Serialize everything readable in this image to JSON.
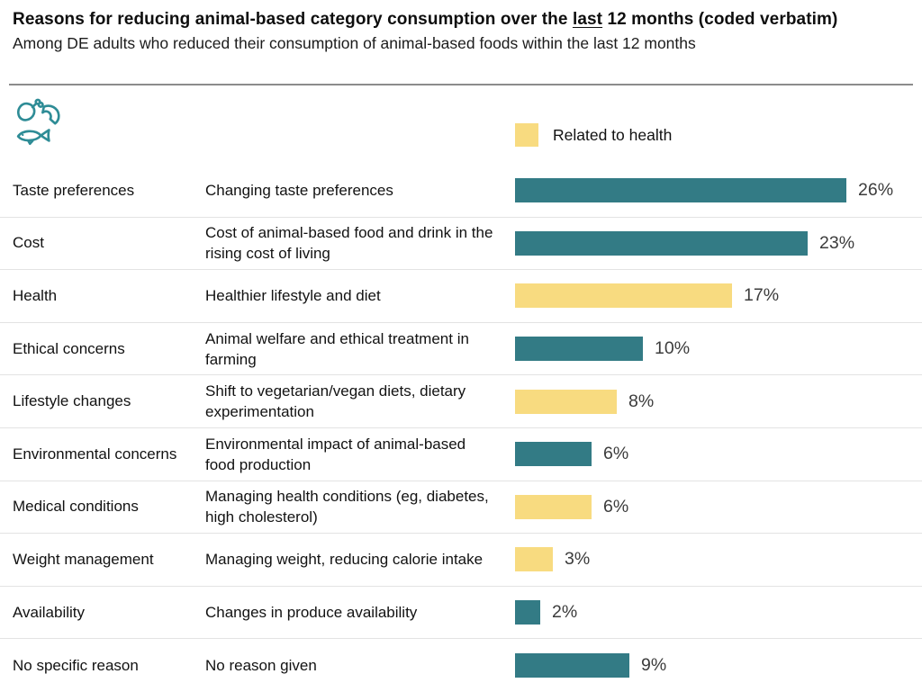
{
  "header": {
    "title_prefix": "Reasons for reducing animal-based category consumption over the ",
    "title_underlined": "last",
    "title_suffix": " 12 months (coded verbatim)",
    "subtitle": "Among DE adults who reduced their consumption of animal-based foods within the last 12 months"
  },
  "icon": {
    "name": "meat-and-fish-icon",
    "color": "#2E8C96"
  },
  "legend": {
    "label": "Related to health",
    "swatch_color": "#F8DB80"
  },
  "colors": {
    "teal": "#337B85",
    "yellow": "#F8DB80",
    "separator": "#E3E3E3",
    "divider": "#8C8C8C"
  },
  "chart_data": {
    "type": "bar",
    "orientation": "horizontal",
    "unit": "percent",
    "xlim": [
      0,
      31
    ],
    "grid": false,
    "legend_position": "top-right-of-bar-column",
    "legend": [
      {
        "label": "Related to health",
        "color": "#F8DB80"
      }
    ],
    "rows": [
      {
        "category": "Taste preferences",
        "description": "Changing taste preferences",
        "value": 26,
        "label": "26%",
        "related_to_health": false
      },
      {
        "category": "Cost",
        "description": "Cost of animal-based food and drink in the rising cost of living",
        "value": 23,
        "label": "23%",
        "related_to_health": false
      },
      {
        "category": "Health",
        "description": "Healthier lifestyle and diet",
        "value": 17,
        "label": "17%",
        "related_to_health": true
      },
      {
        "category": "Ethical concerns",
        "description": "Animal welfare and ethical treatment in farming",
        "value": 10,
        "label": "10%",
        "related_to_health": false
      },
      {
        "category": "Lifestyle changes",
        "description": "Shift to vegetarian/vegan diets, dietary experimentation",
        "value": 8,
        "label": "8%",
        "related_to_health": true
      },
      {
        "category": "Environmental concerns",
        "description": "Environmental impact of animal-based food production",
        "value": 6,
        "label": "6%",
        "related_to_health": false
      },
      {
        "category": "Medical conditions",
        "description": "Managing health conditions (eg, diabetes, high cholesterol)",
        "value": 6,
        "label": "6%",
        "related_to_health": true
      },
      {
        "category": "Weight management",
        "description": "Managing weight, reducing calorie intake",
        "value": 3,
        "label": "3%",
        "related_to_health": true
      },
      {
        "category": "Availability",
        "description": "Changes in produce availability",
        "value": 2,
        "label": "2%",
        "related_to_health": false
      },
      {
        "category": "No specific reason",
        "description": "No reason given",
        "value": 9,
        "label": "9%",
        "related_to_health": false
      }
    ]
  }
}
